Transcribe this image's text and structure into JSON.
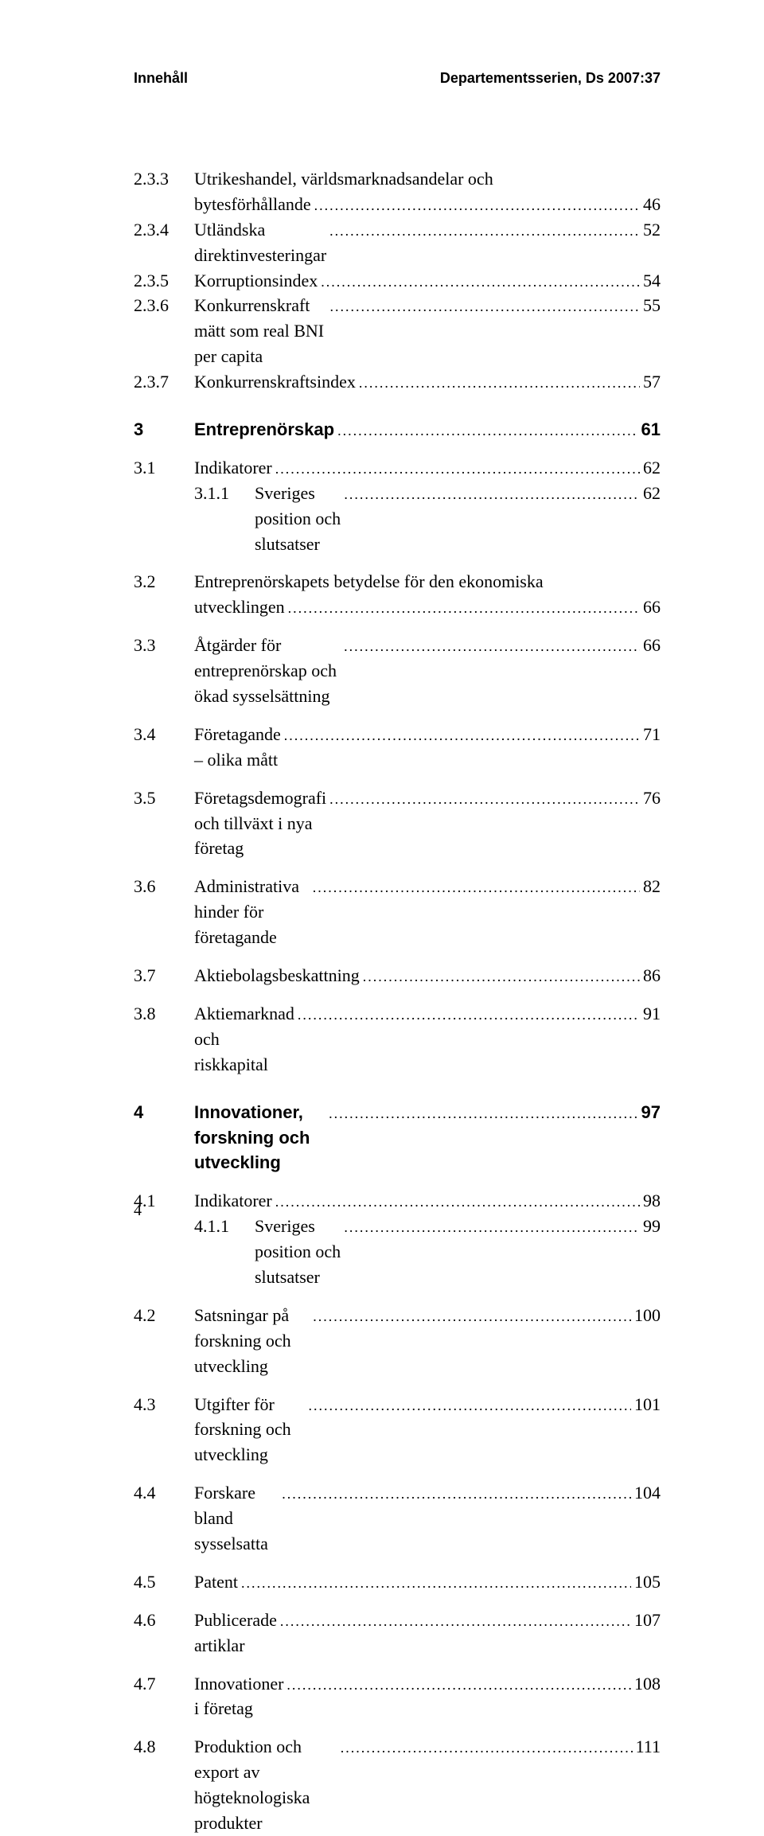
{
  "header": {
    "left": "Innehåll",
    "right": "Departementsserien, Ds 2007:37"
  },
  "page_number": "4",
  "toc": [
    {
      "level": 2,
      "num": "2.3.3",
      "title": "Utrikeshandel, världsmarknadsandelar och",
      "title2": "bytesförhållande",
      "page": "46"
    },
    {
      "level": 2,
      "num": "2.3.4",
      "title": "Utländska direktinvesteringar",
      "page": "52"
    },
    {
      "level": 2,
      "num": "2.3.5",
      "title": "Korruptionsindex",
      "page": "54"
    },
    {
      "level": 2,
      "num": "2.3.6",
      "title": "Konkurrenskraft mätt som real BNI per capita",
      "page": "55"
    },
    {
      "level": 2,
      "num": "2.3.7",
      "title": "Konkurrenskraftsindex",
      "page": "57",
      "gap_after": "md"
    },
    {
      "level": 1,
      "num": "3",
      "title": "Entreprenörskap",
      "page": "61",
      "gap_after": "sm"
    },
    {
      "level": 2,
      "num": "3.1",
      "title": "Indikatorer",
      "page": "62"
    },
    {
      "level": 3,
      "num": "3.1.1",
      "title": "Sveriges position och slutsatser",
      "page": "62",
      "gap_after": "sm"
    },
    {
      "level": 2,
      "num": "3.2",
      "title": "Entreprenörskapets betydelse för den ekonomiska",
      "title2": "utvecklingen",
      "page": "66",
      "gap_after": "sm"
    },
    {
      "level": 2,
      "num": "3.3",
      "title": "Åtgärder för entreprenörskap och ökad sysselsättning",
      "page": "66",
      "gap_after": "sm"
    },
    {
      "level": 2,
      "num": "3.4",
      "title": "Företagande – olika mått",
      "page": "71",
      "gap_after": "sm"
    },
    {
      "level": 2,
      "num": "3.5",
      "title": "Företagsdemografi och tillväxt i nya företag",
      "page": "76",
      "gap_after": "sm"
    },
    {
      "level": 2,
      "num": "3.6",
      "title": "Administrativa hinder för företagande",
      "page": "82",
      "gap_after": "sm"
    },
    {
      "level": 2,
      "num": "3.7",
      "title": "Aktiebolagsbeskattning",
      "page": "86",
      "gap_after": "sm"
    },
    {
      "level": 2,
      "num": "3.8",
      "title": "Aktiemarknad och riskkapital",
      "page": "91",
      "gap_after": "md"
    },
    {
      "level": 1,
      "num": "4",
      "title": "Innovationer, forskning och utveckling",
      "page": "97",
      "gap_after": "sm"
    },
    {
      "level": 2,
      "num": "4.1",
      "title": "Indikatorer",
      "page": "98"
    },
    {
      "level": 3,
      "num": "4.1.1",
      "title": "Sveriges position och slutsatser",
      "page": "99",
      "gap_after": "sm"
    },
    {
      "level": 2,
      "num": "4.2",
      "title": "Satsningar på forskning och utveckling",
      "page": "100",
      "gap_after": "sm"
    },
    {
      "level": 2,
      "num": "4.3",
      "title": "Utgifter för forskning och utveckling",
      "page": "101",
      "gap_after": "sm"
    },
    {
      "level": 2,
      "num": "4.4",
      "title": "Forskare bland sysselsatta",
      "page": "104",
      "gap_after": "sm"
    },
    {
      "level": 2,
      "num": "4.5",
      "title": "Patent",
      "page": "105",
      "gap_after": "sm"
    },
    {
      "level": 2,
      "num": "4.6",
      "title": "Publicerade artiklar",
      "page": "107",
      "gap_after": "sm"
    },
    {
      "level": 2,
      "num": "4.7",
      "title": "Innovationer i företag",
      "page": "108",
      "gap_after": "sm"
    },
    {
      "level": 2,
      "num": "4.8",
      "title": "Produktion och export av högteknologiska produkter",
      "page": "111"
    }
  ]
}
